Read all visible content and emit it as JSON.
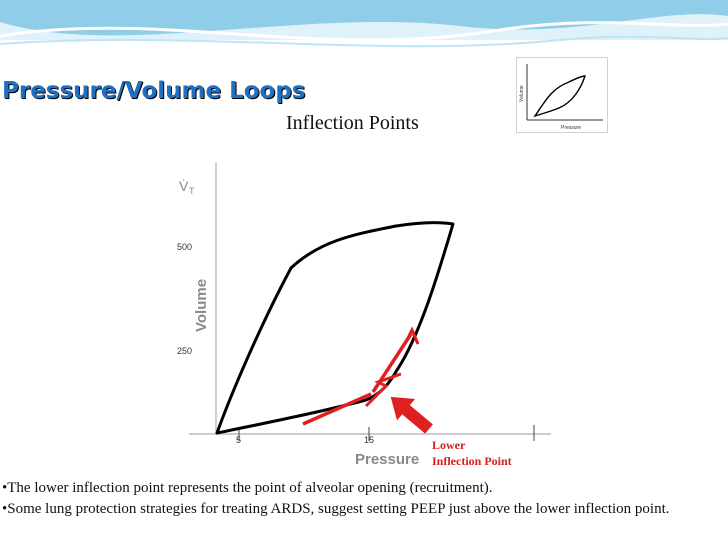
{
  "slide": {
    "title": "Pressure/Volume Loops",
    "subtitle": "Inflection Points",
    "colors": {
      "title": "#1f6fc2",
      "annotation": "#d21f1f",
      "background_wave": "#9fd3ea"
    },
    "thumbnail": {
      "ylabel": "Volume",
      "xlabel": "Pressure"
    },
    "bullets": [
      "•The lower inflection point represents the point of alveolar opening (recruitment).",
      "•Some lung protection strategies for treating ARDS, suggest setting PEEP just above the lower inflection point."
    ]
  },
  "chart_data": {
    "type": "line",
    "title": "",
    "xlabel": "Pressure",
    "ylabel": "Volume",
    "y_symbol": "V̇",
    "y_symbol_sub": "T",
    "x_ticks": [
      "5",
      "15"
    ],
    "y_ticks": [
      "500",
      "250"
    ],
    "grid": false,
    "annotations": [
      {
        "line1": "Lower",
        "line2": "Inflection Point",
        "color": "#d21f1f"
      }
    ]
  }
}
